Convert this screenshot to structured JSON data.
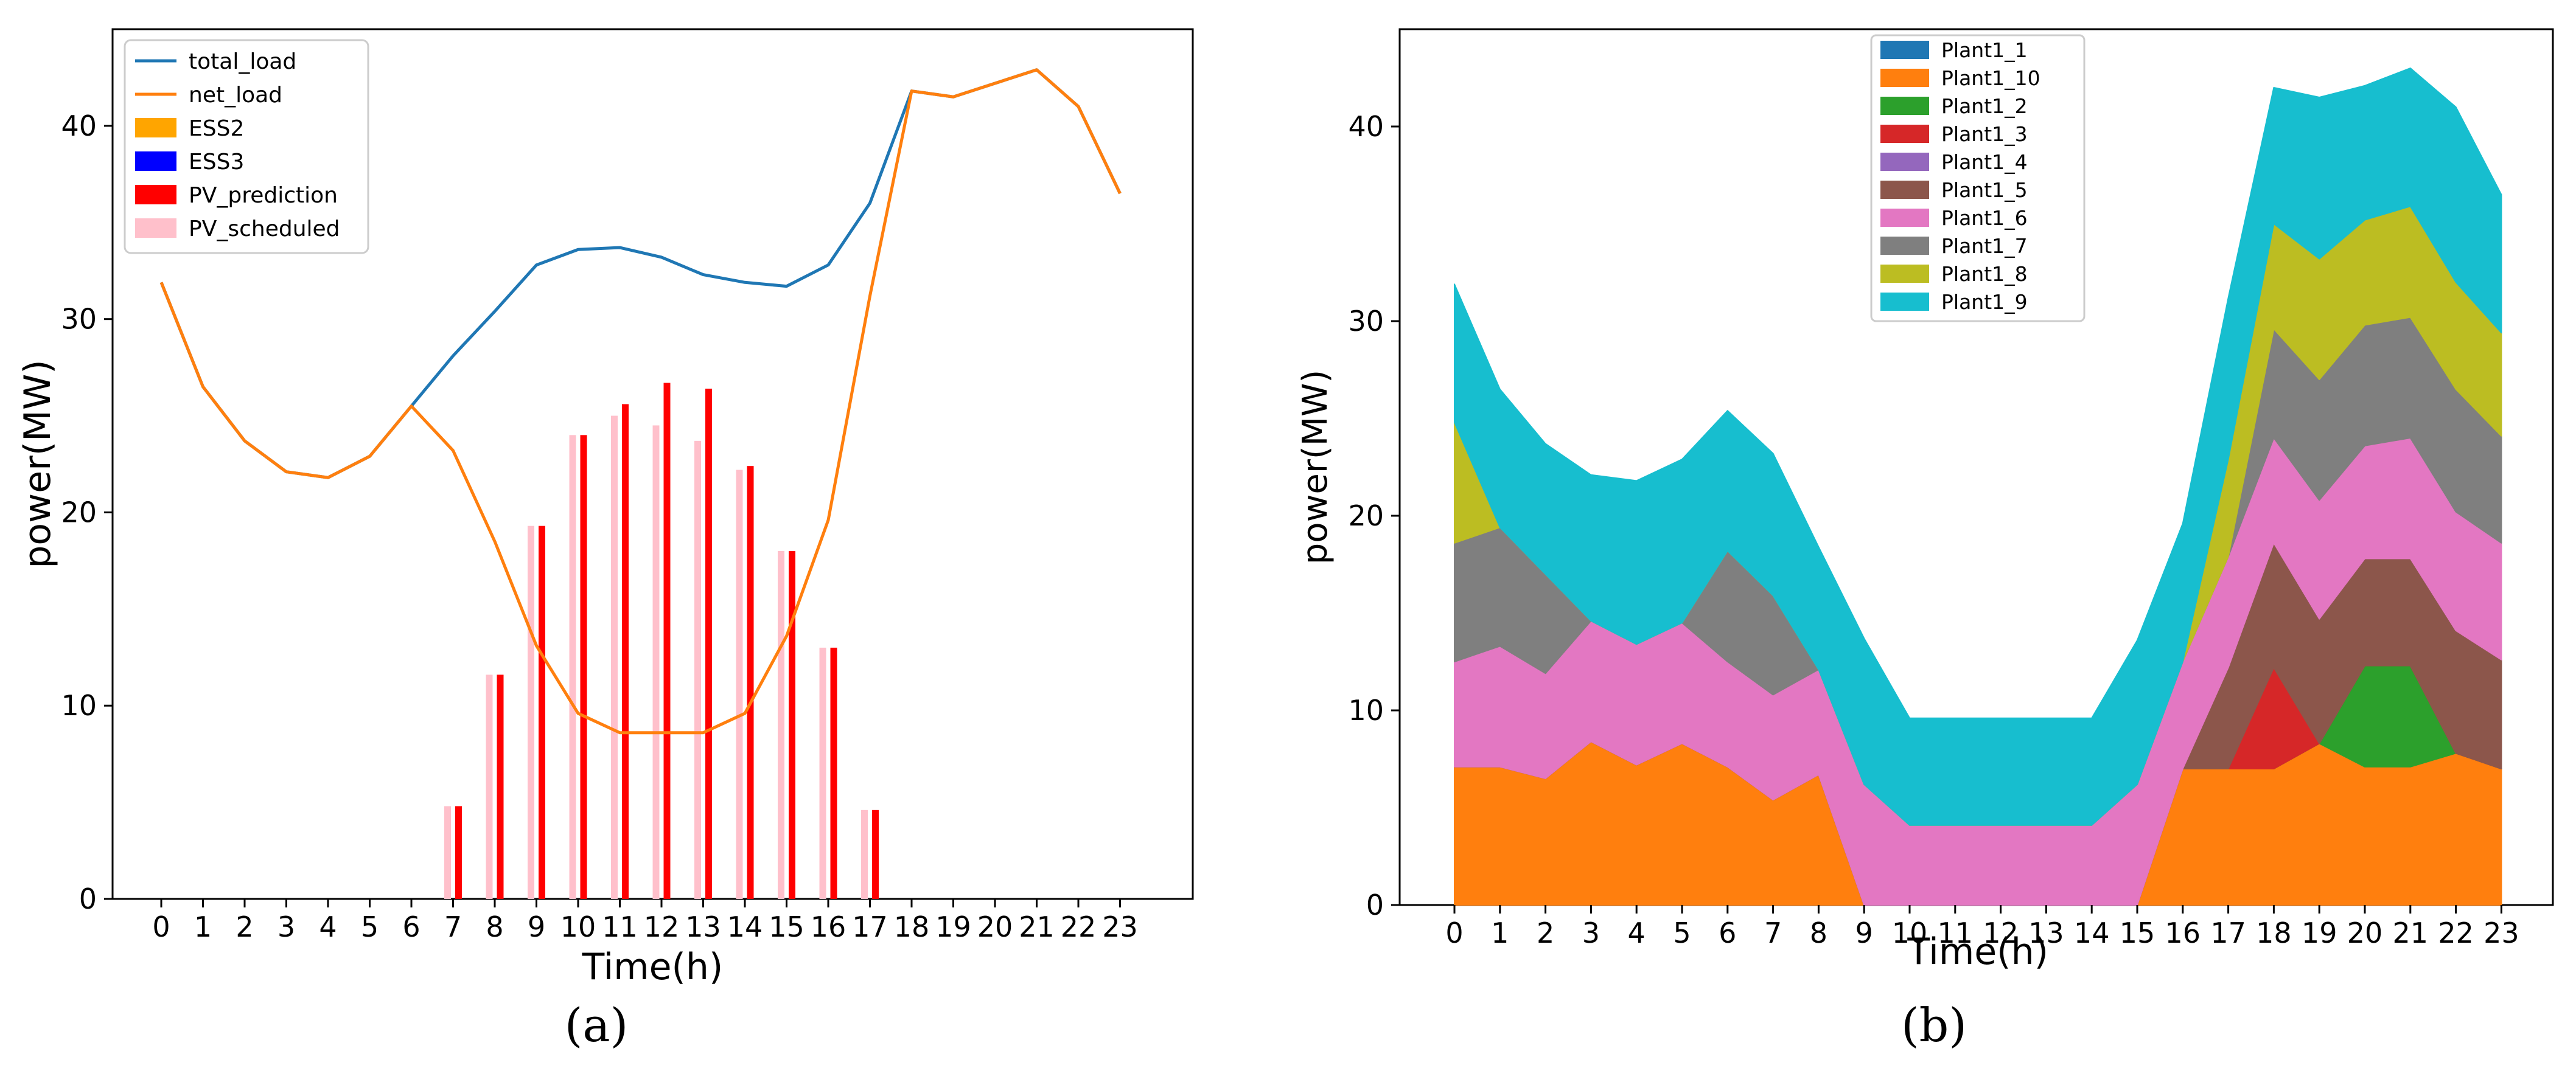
{
  "chart_data": [
    {
      "type": "line+bar",
      "panel_label": "(a)",
      "xlabel": "Time(h)",
      "ylabel": "power(MW)",
      "ylim": [
        0,
        45
      ],
      "yticks": [
        0,
        10,
        20,
        30,
        40
      ],
      "categories": [
        "0",
        "1",
        "2",
        "3",
        "4",
        "5",
        "6",
        "7",
        "8",
        "9",
        "10",
        "11",
        "12",
        "13",
        "14",
        "15",
        "16",
        "17",
        "18",
        "19",
        "20",
        "21",
        "22",
        "23"
      ],
      "legend_position": "top-left",
      "lines": [
        {
          "name": "total_load",
          "color": "#1f77b4",
          "values": [
            31.9,
            26.5,
            23.7,
            22.1,
            21.8,
            22.9,
            25.5,
            28.1,
            30.4,
            32.8,
            33.6,
            33.7,
            33.2,
            32.3,
            31.9,
            31.7,
            32.8,
            36.0,
            41.8,
            41.5,
            42.2,
            42.9,
            41.0,
            36.5
          ]
        },
        {
          "name": "net_load",
          "color": "#ff7f0e",
          "values": [
            31.9,
            26.5,
            23.7,
            22.1,
            21.8,
            22.9,
            25.5,
            23.2,
            18.5,
            13.1,
            9.6,
            8.6,
            8.6,
            8.6,
            9.6,
            13.6,
            19.6,
            31.2,
            41.8,
            41.5,
            42.2,
            42.9,
            41.0,
            36.5
          ]
        }
      ],
      "bars": [
        {
          "name": "ESS2",
          "color": "#ffa500",
          "values": [
            0,
            0,
            0,
            0,
            0,
            0,
            0,
            0,
            0,
            0,
            0,
            0,
            0,
            0,
            0,
            0,
            0,
            0,
            0,
            0,
            0,
            0,
            0,
            0
          ]
        },
        {
          "name": "ESS3",
          "color": "#0000ff",
          "values": [
            0,
            0,
            0,
            0,
            0,
            0,
            0,
            0,
            0,
            0,
            0,
            0,
            0,
            0,
            0,
            0,
            0,
            0,
            0,
            0,
            0,
            0,
            0,
            0
          ]
        },
        {
          "name": "PV_prediction",
          "color": "#ff0000",
          "values": [
            0,
            0,
            0,
            0,
            0,
            0,
            0,
            4.8,
            11.6,
            19.3,
            24.0,
            25.6,
            26.7,
            26.4,
            22.4,
            18.0,
            13.0,
            4.6,
            0,
            0,
            0,
            0,
            0,
            0
          ]
        },
        {
          "name": "PV_scheduled",
          "color": "#ffc0cb",
          "values": [
            0,
            0,
            0,
            0,
            0,
            0,
            0,
            4.8,
            11.6,
            19.3,
            24.0,
            25.0,
            24.5,
            23.7,
            22.2,
            18.0,
            13.0,
            4.6,
            0,
            0,
            0,
            0,
            0,
            0
          ]
        }
      ]
    },
    {
      "type": "area",
      "panel_label": "(b)",
      "xlabel": "Time(h)",
      "ylabel": "power(MW)",
      "ylim": [
        0,
        45
      ],
      "yticks": [
        0,
        10,
        20,
        30,
        40
      ],
      "categories": [
        "0",
        "1",
        "2",
        "3",
        "4",
        "5",
        "6",
        "7",
        "8",
        "9",
        "10",
        "11",
        "12",
        "13",
        "14",
        "15",
        "16",
        "17",
        "18",
        "19",
        "20",
        "21",
        "22",
        "23"
      ],
      "legend_position": "top-center",
      "series": [
        {
          "name": "Plant1_1",
          "color": "#1f77b4",
          "values": [
            0,
            0,
            0,
            0,
            0,
            0,
            0,
            0,
            0,
            0,
            0,
            0,
            0,
            0,
            0,
            0,
            0,
            0,
            0,
            0,
            0,
            0,
            0,
            0
          ]
        },
        {
          "name": "Plant1_10",
          "color": "#ff7f0e",
          "values": [
            7.1,
            7.1,
            6.5,
            8.4,
            7.2,
            8.3,
            7.1,
            5.4,
            6.7,
            0,
            0,
            0,
            0,
            0,
            0,
            0,
            7.0,
            7.0,
            7.0,
            8.3,
            7.1,
            7.1,
            7.8,
            7.0
          ]
        },
        {
          "name": "Plant1_2",
          "color": "#2ca02c",
          "values": [
            0,
            0,
            0,
            0,
            0,
            0,
            0,
            0,
            0,
            0,
            0,
            0,
            0,
            0,
            0,
            0,
            0,
            0,
            0,
            0,
            5.2,
            5.2,
            0,
            0
          ]
        },
        {
          "name": "Plant1_3",
          "color": "#d62728",
          "values": [
            0,
            0,
            0,
            0,
            0,
            0,
            0,
            0,
            0,
            0,
            0,
            0,
            0,
            0,
            0,
            0,
            0,
            0,
            5.2,
            0,
            0,
            0,
            0,
            0
          ]
        },
        {
          "name": "Plant1_4",
          "color": "#9467bd",
          "values": [
            0,
            0,
            0,
            0,
            0,
            0,
            0,
            0,
            0,
            0,
            0,
            0,
            0,
            0,
            0,
            0,
            0,
            0,
            0,
            0,
            0,
            0,
            0,
            0
          ]
        },
        {
          "name": "Plant1_5",
          "color": "#8c564b",
          "values": [
            0,
            0,
            0,
            0,
            0,
            0,
            0,
            0,
            0,
            0,
            0,
            0,
            0,
            0,
            0,
            0,
            0,
            5.2,
            6.4,
            6.4,
            5.5,
            5.5,
            6.3,
            5.6
          ]
        },
        {
          "name": "Plant1_6",
          "color": "#e377c2",
          "values": [
            5.4,
            6.2,
            5.4,
            6.2,
            6.2,
            6.2,
            5.4,
            5.4,
            5.4,
            6.2,
            4.1,
            4.1,
            4.1,
            4.1,
            4.1,
            6.2,
            5.5,
            5.7,
            5.4,
            6.1,
            5.8,
            6.2,
            6.1,
            6.0
          ]
        },
        {
          "name": "Plant1_7",
          "color": "#7f7f7f",
          "values": [
            6.1,
            6.1,
            5.1,
            0,
            0,
            0,
            5.7,
            5.1,
            0,
            0,
            0,
            0,
            0,
            0,
            0,
            0,
            0,
            0,
            5.6,
            6.2,
            6.2,
            6.2,
            6.3,
            5.5
          ]
        },
        {
          "name": "Plant1_8",
          "color": "#bcbd22",
          "values": [
            6.2,
            0,
            0,
            0,
            0,
            0,
            0,
            0,
            0,
            0,
            0,
            0,
            0,
            0,
            0,
            0,
            0,
            5.0,
            5.4,
            6.2,
            5.4,
            5.7,
            5.5,
            5.3
          ]
        },
        {
          "name": "Plant1_9",
          "color": "#17becf",
          "values": [
            7.1,
            7.1,
            6.7,
            7.5,
            8.4,
            8.4,
            7.2,
            7.3,
            6.3,
            7.5,
            5.5,
            5.5,
            5.5,
            5.5,
            5.5,
            7.4,
            7.1,
            8.3,
            7.0,
            8.3,
            6.9,
            7.1,
            9.0,
            7.1
          ]
        }
      ]
    }
  ]
}
